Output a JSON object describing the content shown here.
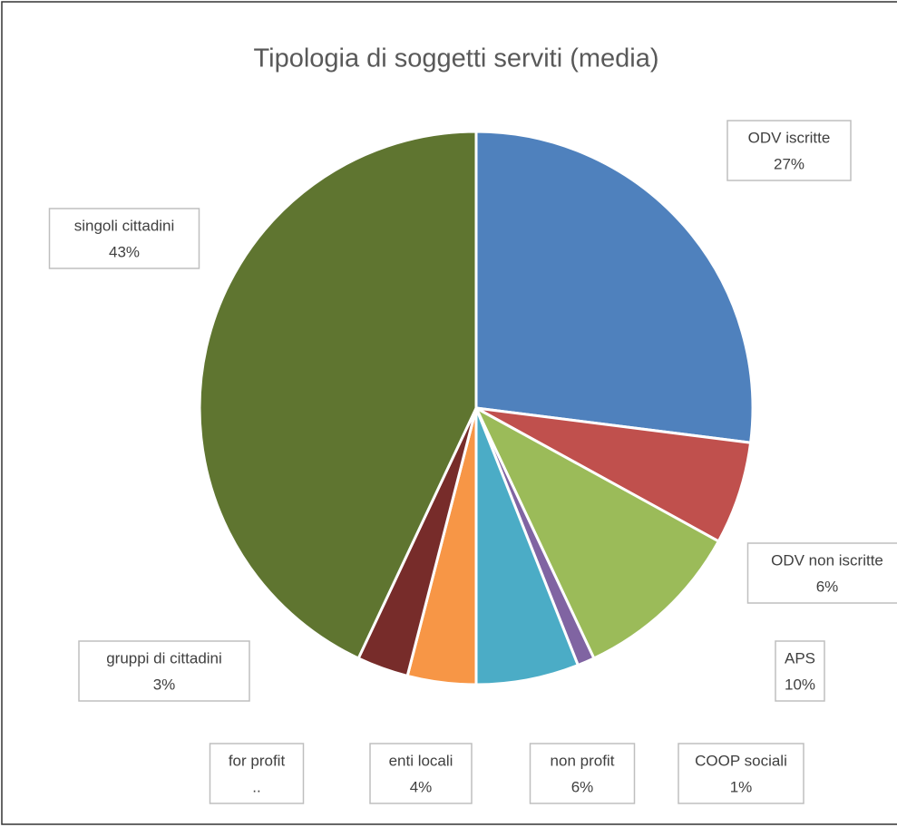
{
  "chart_data": {
    "type": "pie",
    "title": "Tipologia di soggetti serviti (media)",
    "categories": [
      "ODV iscritte",
      "ODV non iscritte",
      "APS",
      "COOP sociali",
      "non profit",
      "enti locali",
      "for profit",
      "gruppi di cittadini",
      "singoli cittadini"
    ],
    "values": [
      27,
      6,
      10,
      1,
      6,
      4,
      0,
      3,
      43
    ],
    "value_labels": [
      "27%",
      "6%",
      "10%",
      "1%",
      "6%",
      "4%",
      "..",
      "3%",
      "43%"
    ],
    "colors": [
      "#4f81bd",
      "#c0504d",
      "#9bbb59",
      "#8064a2",
      "#4bacc6",
      "#f79646",
      "#8e3b3b",
      "#772c2a",
      "#5f7530"
    ]
  }
}
